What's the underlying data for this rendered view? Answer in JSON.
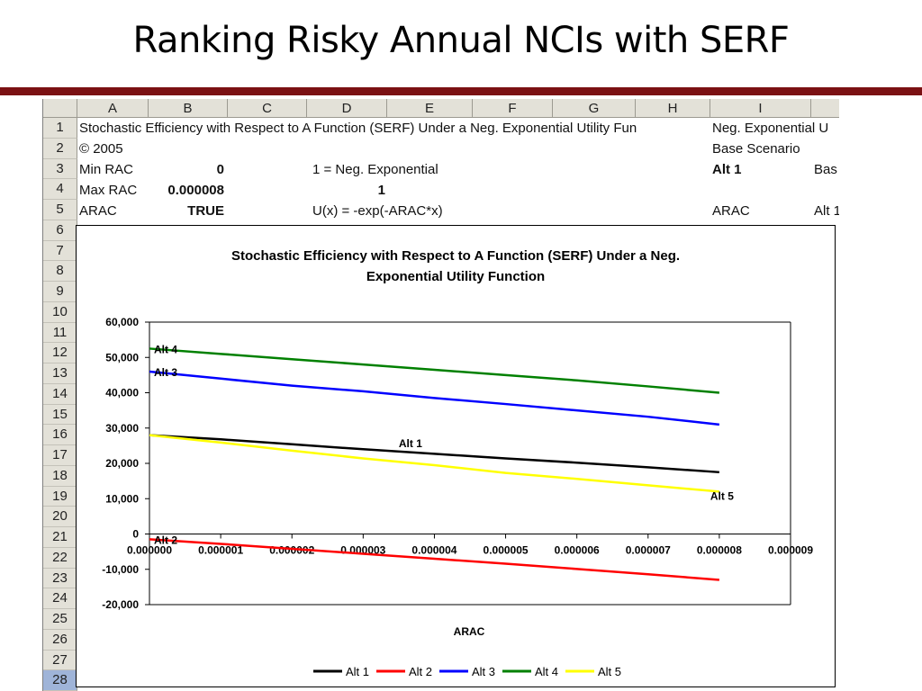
{
  "slide": {
    "title": "Ranking Risky Annual NCIs with SERF"
  },
  "spreadsheet": {
    "columns": [
      "A",
      "B",
      "C",
      "D",
      "E",
      "F",
      "G",
      "H",
      "I",
      ""
    ],
    "rows": [
      "1",
      "2",
      "3",
      "4",
      "5",
      "6",
      "7",
      "8",
      "9",
      "10",
      "11",
      "12",
      "13",
      "14",
      "15",
      "16",
      "17",
      "18",
      "19",
      "20",
      "21",
      "22",
      "23",
      "24",
      "25",
      "26",
      "27",
      "28"
    ],
    "active_row": "28",
    "cells": {
      "a1": "Stochastic Efficiency with Respect to A Function (SERF) Under a Neg. Exponential Utility Fun",
      "i1": "Neg. Exponential U",
      "a2": "© 2005",
      "i2": "Base Scenario",
      "a3": "Min RAC",
      "b3": "0",
      "d3": "1 = Neg. Exponential",
      "i3": "Alt 1",
      "j3": "Bas",
      "a4": "Max RAC",
      "b4": "0.000008",
      "d4": "1",
      "a5": "ARAC",
      "b5": "TRUE",
      "d5": "U(x) = -exp(-ARAC*x)",
      "i5": "ARAC",
      "j5": "Alt 1"
    }
  },
  "chart_data": {
    "type": "line",
    "title": "Stochastic Efficiency with Respect to A Function (SERF) Under a Neg. Exponential Utility Function",
    "title_lines": [
      "Stochastic Efficiency with Respect to A Function (SERF) Under a Neg.",
      "Exponential Utility Function"
    ],
    "xlabel": "ARAC",
    "ylabel": "",
    "xlim": [
      0,
      9e-06
    ],
    "ylim": [
      -20000,
      60000
    ],
    "x_ticks": [
      0,
      1e-06,
      2e-06,
      3e-06,
      4e-06,
      5e-06,
      6e-06,
      7e-06,
      8e-06,
      9e-06
    ],
    "x_tick_labels": [
      "0.000000",
      "0.000001",
      "0.000002",
      "0.000003",
      "0.000004",
      "0.000005",
      "0.000006",
      "0.000007",
      "0.000008",
      "0.000009"
    ],
    "y_ticks": [
      -20000,
      -10000,
      0,
      10000,
      20000,
      30000,
      40000,
      50000,
      60000
    ],
    "y_tick_labels": [
      "-20,000",
      "-10,000",
      "0",
      "10,000",
      "20,000",
      "30,000",
      "40,000",
      "50,000",
      "60,000"
    ],
    "grid": false,
    "legend_position": "bottom",
    "x": [
      0,
      1e-06,
      2e-06,
      3e-06,
      4e-06,
      5e-06,
      6e-06,
      7e-06,
      8e-06
    ],
    "series": [
      {
        "name": "Alt 1",
        "color": "#000000",
        "values": [
          28000,
          26800,
          25400,
          24000,
          22700,
          21400,
          20200,
          18900,
          17500
        ],
        "annotation": "Alt 1",
        "annotation_x": 3.5e-06
      },
      {
        "name": "Alt 2",
        "color": "#ff0000",
        "values": [
          -1500,
          -2800,
          -4200,
          -5600,
          -7000,
          -8400,
          -9900,
          -11400,
          -13000
        ],
        "annotation": "Alt 2",
        "annotation_x": 0
      },
      {
        "name": "Alt 3",
        "color": "#0000ff",
        "values": [
          46000,
          44000,
          42000,
          40400,
          38500,
          36800,
          35000,
          33200,
          31000
        ],
        "annotation": "Alt 3",
        "annotation_x": 0
      },
      {
        "name": "Alt 4",
        "color": "#008000",
        "values": [
          52500,
          51000,
          49500,
          48000,
          46500,
          45000,
          43500,
          41800,
          40000
        ],
        "annotation": "Alt 4",
        "annotation_x": 0
      },
      {
        "name": "Alt 5",
        "color": "#ffff00",
        "values": [
          28000,
          25900,
          23600,
          21400,
          19500,
          17300,
          15600,
          13800,
          12000
        ],
        "annotation": "Alt 5",
        "annotation_x": 8e-06
      }
    ]
  }
}
